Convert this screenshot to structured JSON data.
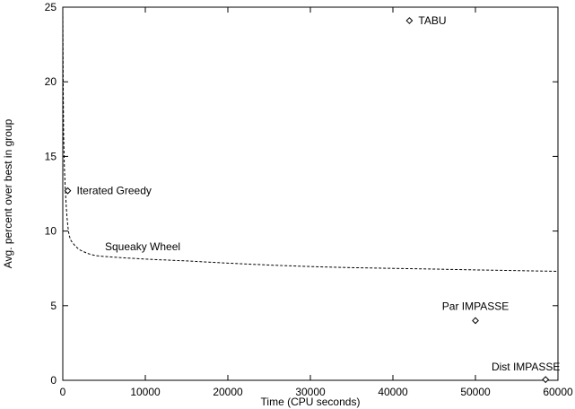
{
  "chart_data": {
    "type": "scatter",
    "title": "",
    "xlabel": "Time (CPU seconds)",
    "ylabel": "Avg. percent over best in group",
    "xlim": [
      0,
      60000
    ],
    "ylim": [
      0,
      25
    ],
    "x_ticks": [
      0,
      10000,
      20000,
      30000,
      40000,
      50000,
      60000
    ],
    "x_tick_labels": [
      "0",
      "10000",
      "20000",
      "30000",
      "40000",
      "50000",
      "60000"
    ],
    "y_ticks": [
      0,
      5,
      10,
      15,
      20,
      25
    ],
    "y_tick_labels": [
      "0",
      "5",
      "10",
      "15",
      "20",
      "25"
    ],
    "grid": false,
    "series": [
      {
        "name": "Squeaky Wheel",
        "style": "dashed-line",
        "x": [
          0,
          40,
          100,
          200,
          300,
          400,
          500,
          600,
          700,
          800,
          1000,
          1500,
          2000,
          3000,
          4000,
          5000,
          7000,
          10000,
          15000,
          20000,
          25000,
          30000,
          35000,
          40000,
          45000,
          50000,
          55000,
          60000
        ],
        "y": [
          25,
          20.3,
          16.5,
          14.2,
          12.8,
          11.8,
          11.0,
          10.4,
          9.95,
          9.65,
          9.35,
          9.0,
          8.75,
          8.5,
          8.35,
          8.3,
          8.22,
          8.12,
          8.0,
          7.85,
          7.72,
          7.62,
          7.55,
          7.5,
          7.45,
          7.4,
          7.35,
          7.3
        ]
      },
      {
        "name": "Iterated Greedy",
        "style": "diamond-marker",
        "x": [
          600
        ],
        "y": [
          12.7
        ]
      },
      {
        "name": "TABU",
        "style": "diamond-marker",
        "x": [
          42000
        ],
        "y": [
          24.1
        ]
      },
      {
        "name": "Par IMPASSE",
        "style": "diamond-marker",
        "x": [
          50000
        ],
        "y": [
          4.0
        ]
      },
      {
        "name": "Dist IMPASSE",
        "style": "diamond-marker",
        "x": [
          58500
        ],
        "y": [
          0.05
        ]
      }
    ],
    "annotations": [
      {
        "text": "TABU",
        "series": "TABU"
      },
      {
        "text": "Iterated Greedy",
        "series": "Iterated Greedy"
      },
      {
        "text": "Squeaky Wheel",
        "series": "Squeaky Wheel"
      },
      {
        "text": "Par IMPASSE",
        "series": "Par IMPASSE"
      },
      {
        "text": "Dist IMPASSE",
        "series": "Dist IMPASSE"
      }
    ]
  }
}
